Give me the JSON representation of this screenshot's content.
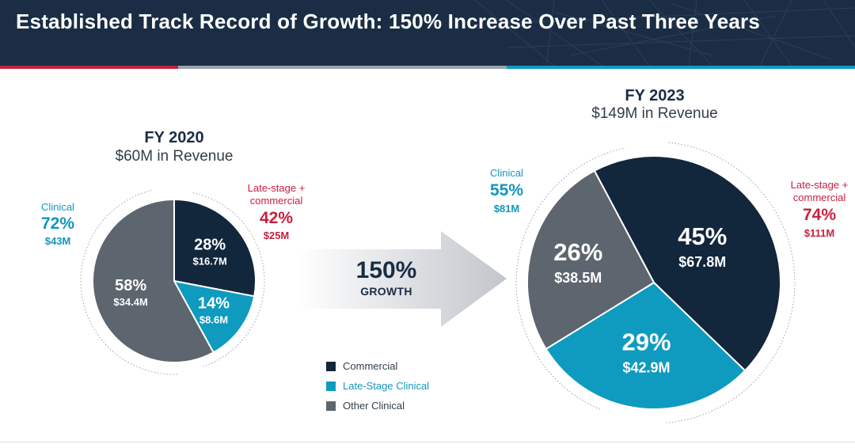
{
  "header": {
    "title": "Established Track Record of Growth: 150% Increase Over Past Three Years"
  },
  "colors": {
    "commercial": "#12263c",
    "late_stage_clinical": "#0f9bbf",
    "other_clinical": "#5d656e",
    "accent_red": "#c8203f"
  },
  "growth": {
    "pct": "150%",
    "label": "GROWTH"
  },
  "legend": [
    {
      "label": "Commercial",
      "color": "#12263c"
    },
    {
      "label": "Late-Stage Clinical",
      "color": "#0f9bbf"
    },
    {
      "label": "Other Clinical",
      "color": "#5d656e"
    }
  ],
  "fy2020": {
    "title": "FY 2020",
    "subtitle": "$60M in Revenue",
    "clinical": {
      "label": "Clinical",
      "pct": "72%",
      "amount": "$43M"
    },
    "late_stage": {
      "label_line1": "Late-stage +",
      "label_line2": "commercial",
      "pct": "42%",
      "amount": "$25M"
    }
  },
  "fy2023": {
    "title": "FY 2023",
    "subtitle": "$149M in Revenue",
    "clinical": {
      "label": "Clinical",
      "pct": "55%",
      "amount": "$81M"
    },
    "late_stage": {
      "label_line1": "Late-stage +",
      "label_line2": "commercial",
      "pct": "74%",
      "amount": "$111M"
    }
  },
  "chart_data": [
    {
      "type": "pie",
      "title": "FY 2020",
      "subtitle": "$60M in Revenue",
      "categories": [
        "Commercial",
        "Late-Stage Clinical",
        "Other Clinical"
      ],
      "values": [
        28,
        14,
        58
      ],
      "labels": [
        "28%",
        "14%",
        "58%"
      ],
      "amounts": [
        "$16.7M",
        "$8.6M",
        "$34.4M"
      ],
      "start_angle_deg": 0
    },
    {
      "type": "pie",
      "title": "FY 2023",
      "subtitle": "$149M in Revenue",
      "categories": [
        "Commercial",
        "Late-Stage Clinical",
        "Other Clinical"
      ],
      "values": [
        45,
        29,
        26
      ],
      "labels": [
        "45%",
        "29%",
        "26%"
      ],
      "amounts": [
        "$67.8M",
        "$42.9M",
        "$38.5M"
      ],
      "start_angle_deg": -28
    }
  ]
}
